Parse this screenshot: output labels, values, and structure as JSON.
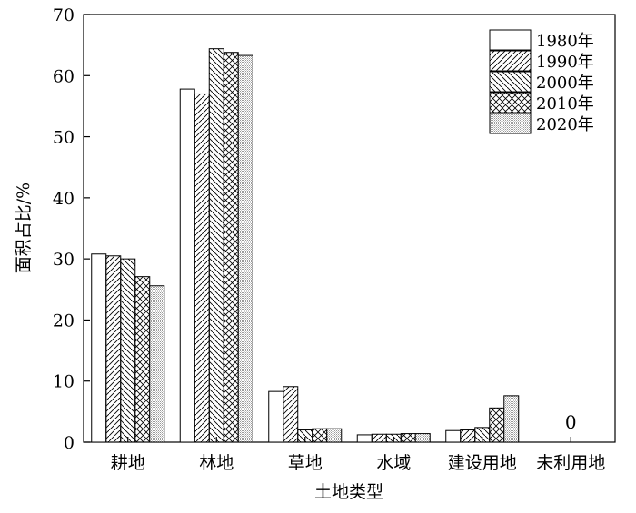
{
  "chart_data": {
    "type": "bar",
    "xlabel": "土地类型",
    "ylabel": "面积占比/%",
    "ylim": [
      0,
      70
    ],
    "yticks": [
      0,
      10,
      20,
      30,
      40,
      50,
      60,
      70
    ],
    "categories": [
      "耕地",
      "林地",
      "草地",
      "水域",
      "建设用地",
      "未利用地"
    ],
    "series": [
      {
        "name": "1980年",
        "pattern": "none",
        "values": [
          30.8,
          57.8,
          8.3,
          1.2,
          1.9,
          0
        ]
      },
      {
        "name": "1990年",
        "pattern": "forward-diag",
        "values": [
          30.5,
          57.0,
          9.1,
          1.3,
          2.0,
          0
        ]
      },
      {
        "name": "2000年",
        "pattern": "back-diag",
        "values": [
          30.0,
          64.4,
          2.0,
          1.3,
          2.4,
          0
        ]
      },
      {
        "name": "2010年",
        "pattern": "cross-diag",
        "values": [
          27.1,
          63.8,
          2.2,
          1.4,
          5.6,
          0
        ]
      },
      {
        "name": "2020年",
        "pattern": "dots",
        "values": [
          25.6,
          63.3,
          2.2,
          1.4,
          7.6,
          0
        ]
      }
    ],
    "annotations": [
      {
        "category": "未利用地",
        "text": "0"
      }
    ],
    "legend_position": "top-right",
    "grid": false
  }
}
